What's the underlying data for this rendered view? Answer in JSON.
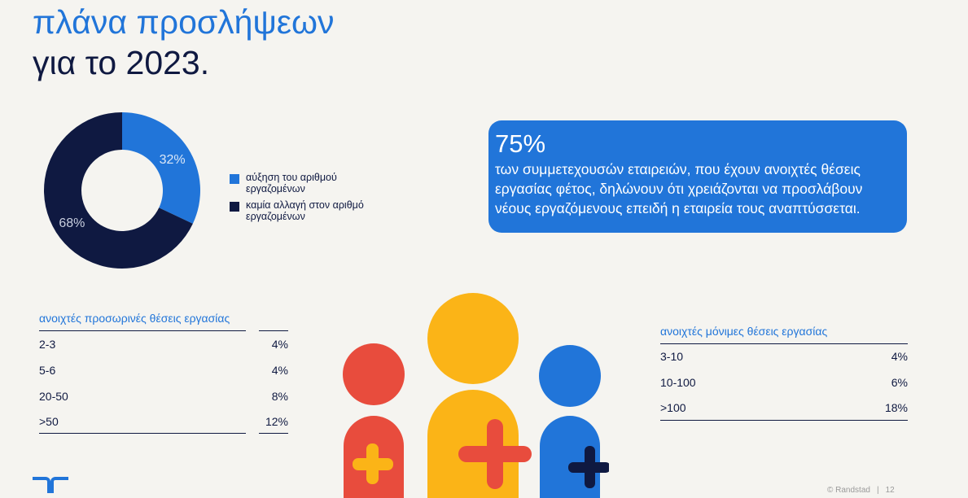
{
  "title": {
    "line1": "πλάνα προσλήψεων",
    "line2": "για το 2023."
  },
  "donut": {
    "segments": [
      {
        "label": "32%",
        "value": 32,
        "color": "#2175d9"
      },
      {
        "label": "68%",
        "value": 68,
        "color": "#0f1941"
      }
    ]
  },
  "legend": [
    {
      "label": "αύξηση του αριθμού εργαζομένων",
      "color": "#2175d9"
    },
    {
      "label": "καμία αλλαγή στον αριθμό εργαζομένων",
      "color": "#0f1941"
    }
  ],
  "callout": {
    "stat": "75%",
    "text": "των συμμετεχουσών εταιρειών, που έχουν ανοιχτές θέσεις εργασίας φέτος, δηλώνουν ότι χρειάζονται να προσλάβουν νέους εργαζόμενους επειδή η εταιρεία τους αναπτύσσεται."
  },
  "temp_table": {
    "title": "ανοιχτές προσωρινές θέσεις εργασίας",
    "rows": [
      {
        "label": "2-3",
        "value": "4%"
      },
      {
        "label": "5-6",
        "value": "4%"
      },
      {
        "label": "20-50",
        "value": "8%"
      },
      {
        "label": ">50",
        "value": "12%"
      }
    ]
  },
  "perm_table": {
    "title": "ανοιχτές μόνιμες θέσεις εργασίας",
    "rows": [
      {
        "label": "3-10",
        "value": "4%"
      },
      {
        "label": "10-100",
        "value": "6%"
      },
      {
        "label": ">100",
        "value": "18%"
      }
    ]
  },
  "illustration": {
    "icon": "people-plus-icon",
    "colors": {
      "red": "#e84c3d",
      "yellow": "#fbb417",
      "blue": "#2175d9",
      "navy": "#0f1941"
    }
  },
  "footer": {
    "copyright": "© Randstad",
    "separator": "|",
    "page": "12"
  }
}
